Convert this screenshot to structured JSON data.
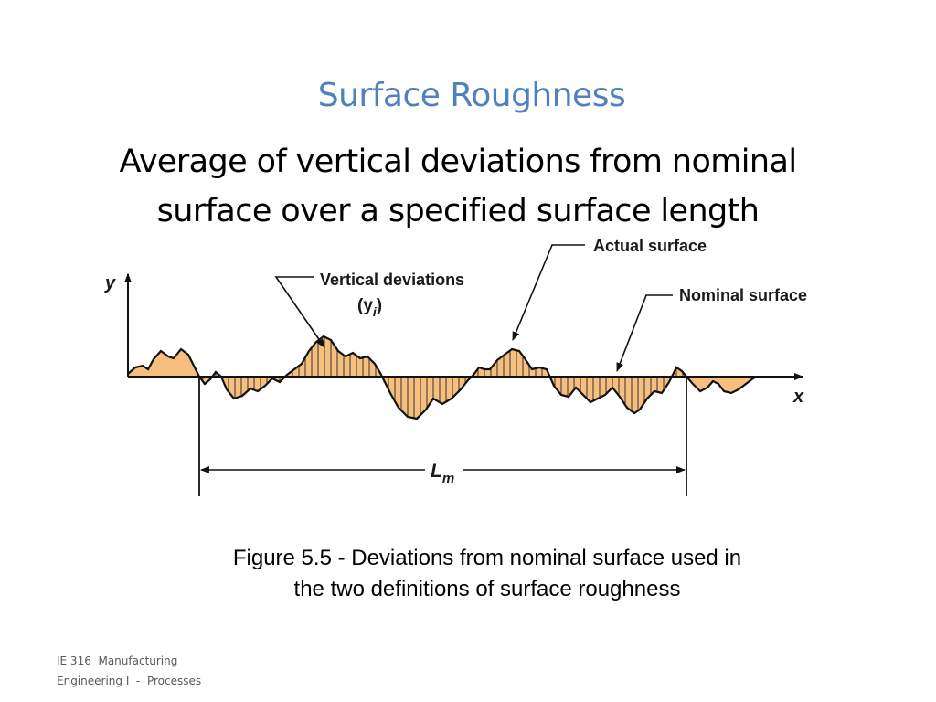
{
  "slide": {
    "title": "Surface Roughness",
    "subtitle_line1": "Average of vertical deviations from nominal",
    "subtitle_line2": "surface over a specified surface length"
  },
  "diagram": {
    "fill_color": "#f7bf7e",
    "labels": {
      "actual_surface": "Actual surface",
      "nominal_surface": "Nominal surface",
      "vertical_deviations": "Vertical deviations",
      "yi_open": "(y",
      "yi_sub": "i",
      "yi_close": ")",
      "y_axis": "y",
      "x_axis": "x",
      "lm_main": "L",
      "lm_sub": "m"
    }
  },
  "caption": {
    "line1": "Figure 5.5 - Deviations from nominal surface used in",
    "line2": "the two definitions of surface roughness"
  },
  "footer": {
    "line1": "IE 316  Manufacturing",
    "line2": "Engineering I  -  Processes"
  }
}
